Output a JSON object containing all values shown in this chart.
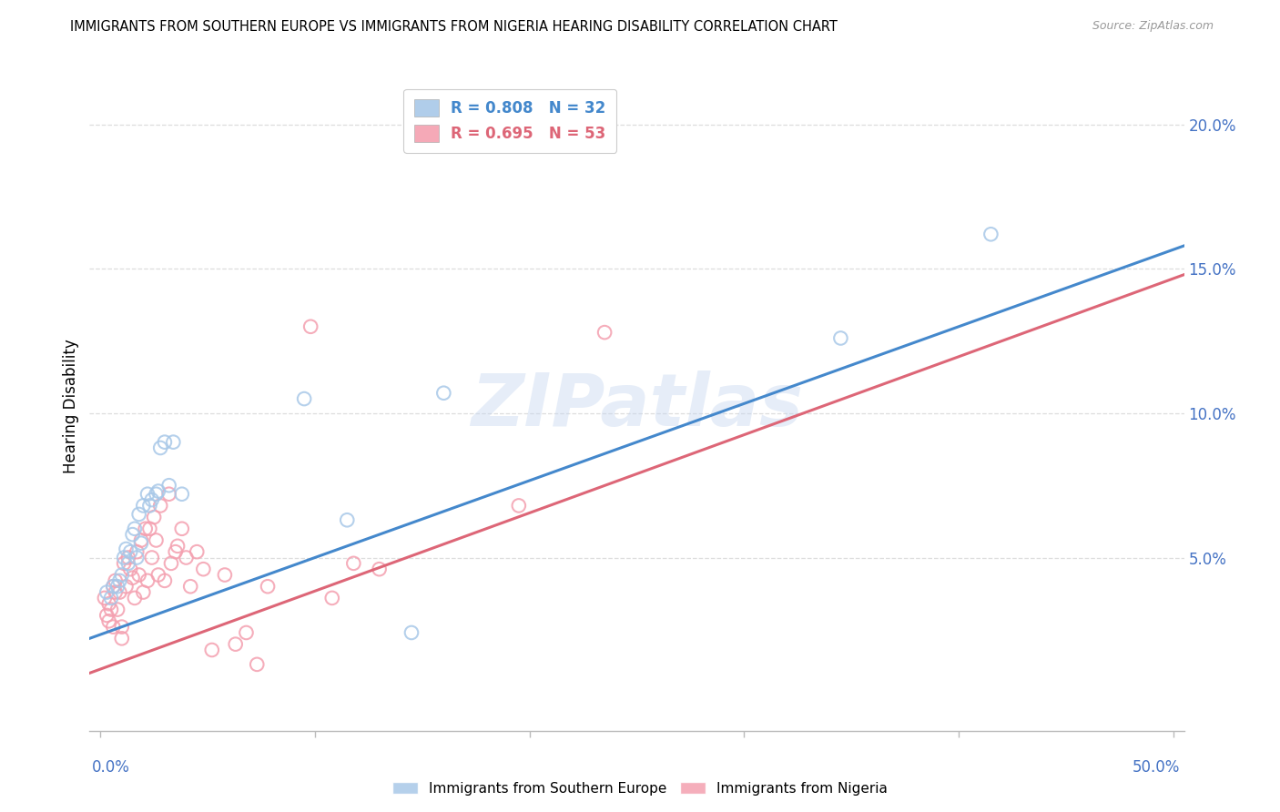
{
  "title": "IMMIGRANTS FROM SOUTHERN EUROPE VS IMMIGRANTS FROM NIGERIA HEARING DISABILITY CORRELATION CHART",
  "source": "Source: ZipAtlas.com",
  "xlabel_bottom_left": "0.0%",
  "xlabel_bottom_right": "50.0%",
  "ylabel": "Hearing Disability",
  "ytick_labels": [
    "20.0%",
    "15.0%",
    "10.0%",
    "5.0%"
  ],
  "ytick_values": [
    0.2,
    0.15,
    0.1,
    0.05
  ],
  "xlim": [
    -0.005,
    0.505
  ],
  "ylim": [
    -0.01,
    0.215
  ],
  "watermark": "ZIPatlas",
  "blue_color": "#a8c8e8",
  "pink_color": "#f4a0b0",
  "blue_line_color": "#4488cc",
  "pink_line_color": "#dd6677",
  "tick_color": "#4472c4",
  "grid_color": "#dddddd",
  "blue_scatter": [
    [
      0.003,
      0.038
    ],
    [
      0.005,
      0.036
    ],
    [
      0.006,
      0.04
    ],
    [
      0.008,
      0.04
    ],
    [
      0.009,
      0.042
    ],
    [
      0.01,
      0.044
    ],
    [
      0.011,
      0.05
    ],
    [
      0.012,
      0.053
    ],
    [
      0.013,
      0.048
    ],
    [
      0.014,
      0.052
    ],
    [
      0.015,
      0.058
    ],
    [
      0.016,
      0.06
    ],
    [
      0.017,
      0.05
    ],
    [
      0.018,
      0.065
    ],
    [
      0.019,
      0.055
    ],
    [
      0.02,
      0.068
    ],
    [
      0.022,
      0.072
    ],
    [
      0.023,
      0.068
    ],
    [
      0.024,
      0.07
    ],
    [
      0.026,
      0.072
    ],
    [
      0.027,
      0.073
    ],
    [
      0.028,
      0.088
    ],
    [
      0.03,
      0.09
    ],
    [
      0.032,
      0.075
    ],
    [
      0.034,
      0.09
    ],
    [
      0.038,
      0.072
    ],
    [
      0.095,
      0.105
    ],
    [
      0.115,
      0.063
    ],
    [
      0.145,
      0.024
    ],
    [
      0.16,
      0.107
    ],
    [
      0.345,
      0.126
    ],
    [
      0.415,
      0.162
    ]
  ],
  "pink_scatter": [
    [
      0.002,
      0.036
    ],
    [
      0.003,
      0.03
    ],
    [
      0.004,
      0.034
    ],
    [
      0.004,
      0.028
    ],
    [
      0.005,
      0.032
    ],
    [
      0.006,
      0.026
    ],
    [
      0.006,
      0.04
    ],
    [
      0.007,
      0.038
    ],
    [
      0.007,
      0.042
    ],
    [
      0.008,
      0.032
    ],
    [
      0.009,
      0.038
    ],
    [
      0.01,
      0.022
    ],
    [
      0.01,
      0.026
    ],
    [
      0.011,
      0.048
    ],
    [
      0.012,
      0.04
    ],
    [
      0.013,
      0.05
    ],
    [
      0.014,
      0.046
    ],
    [
      0.015,
      0.043
    ],
    [
      0.016,
      0.036
    ],
    [
      0.017,
      0.052
    ],
    [
      0.018,
      0.044
    ],
    [
      0.019,
      0.056
    ],
    [
      0.02,
      0.038
    ],
    [
      0.021,
      0.06
    ],
    [
      0.022,
      0.042
    ],
    [
      0.023,
      0.06
    ],
    [
      0.024,
      0.05
    ],
    [
      0.025,
      0.064
    ],
    [
      0.026,
      0.056
    ],
    [
      0.027,
      0.044
    ],
    [
      0.028,
      0.068
    ],
    [
      0.03,
      0.042
    ],
    [
      0.032,
      0.072
    ],
    [
      0.033,
      0.048
    ],
    [
      0.035,
      0.052
    ],
    [
      0.036,
      0.054
    ],
    [
      0.038,
      0.06
    ],
    [
      0.04,
      0.05
    ],
    [
      0.042,
      0.04
    ],
    [
      0.045,
      0.052
    ],
    [
      0.048,
      0.046
    ],
    [
      0.052,
      0.018
    ],
    [
      0.058,
      0.044
    ],
    [
      0.063,
      0.02
    ],
    [
      0.068,
      0.024
    ],
    [
      0.073,
      0.013
    ],
    [
      0.078,
      0.04
    ],
    [
      0.098,
      0.13
    ],
    [
      0.108,
      0.036
    ],
    [
      0.118,
      0.048
    ],
    [
      0.13,
      0.046
    ],
    [
      0.195,
      0.068
    ],
    [
      0.235,
      0.128
    ]
  ],
  "blue_line": {
    "x0": -0.005,
    "y0": 0.022,
    "x1": 0.505,
    "y1": 0.158
  },
  "pink_line": {
    "x0": -0.005,
    "y0": 0.01,
    "x1": 0.505,
    "y1": 0.148
  }
}
